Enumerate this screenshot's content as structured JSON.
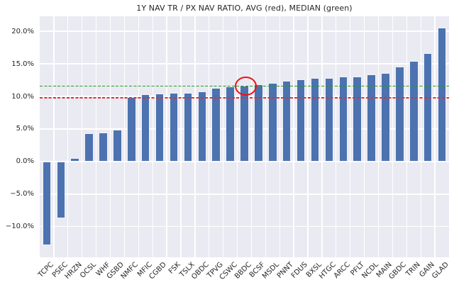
{
  "chart_data": {
    "type": "bar",
    "title": "1Y NAV TR / PX NAV RATIO, AVG (red), MEDIAN (green)",
    "categories": [
      "TCPC",
      "PSEC",
      "HRZN",
      "OCSL",
      "WHF",
      "GSBD",
      "NMFC",
      "MFIC",
      "CGBD",
      "FSK",
      "TSLX",
      "OBDC",
      "TPVG",
      "CSWC",
      "BBDC",
      "BCSF",
      "MSDL",
      "PNNT",
      "FDUS",
      "BXSL",
      "HTGC",
      "ARCC",
      "PFLT",
      "NCDL",
      "MAIN",
      "GBDC",
      "TRIN",
      "GAIN",
      "GLAD"
    ],
    "values": [
      -12.9,
      -8.7,
      0.5,
      4.3,
      4.4,
      4.9,
      9.9,
      10.3,
      10.4,
      10.5,
      10.6,
      10.8,
      11.3,
      11.5,
      11.6,
      11.8,
      12.1,
      12.4,
      12.6,
      12.8,
      12.8,
      13.0,
      13.1,
      13.4,
      13.6,
      14.6,
      15.4,
      16.6,
      20.6
    ],
    "xlabel": "",
    "ylabel": "",
    "ylim": [
      -14.7,
      22.3
    ],
    "grid": true,
    "legend_position": "none",
    "yticks": [
      {
        "label": "20.0%",
        "value": 20
      },
      {
        "label": "15.0%",
        "value": 15
      },
      {
        "label": "10.0%",
        "value": 10
      },
      {
        "label": "5.0%",
        "value": 5
      },
      {
        "label": "0.0%",
        "value": 0
      },
      {
        "label": "−5.0%",
        "value": -5
      },
      {
        "label": "−10.0%",
        "value": -10
      }
    ],
    "reference_lines": [
      {
        "name": "AVG",
        "value": 9.8,
        "color": "#e03030",
        "style": "dashed"
      },
      {
        "name": "MEDIAN",
        "value": 11.6,
        "color": "#239b23",
        "style": "dashed"
      }
    ],
    "annotation": {
      "type": "circle",
      "category": "BBDC",
      "color": "#ee1111"
    },
    "colors": {
      "bar": "#4c72b0",
      "bar_edge": "#f0f2f8",
      "plot_bg": "#eaeaf2",
      "grid": "#ffffff",
      "title_text": "#262626",
      "tick_text": "#262626"
    }
  }
}
